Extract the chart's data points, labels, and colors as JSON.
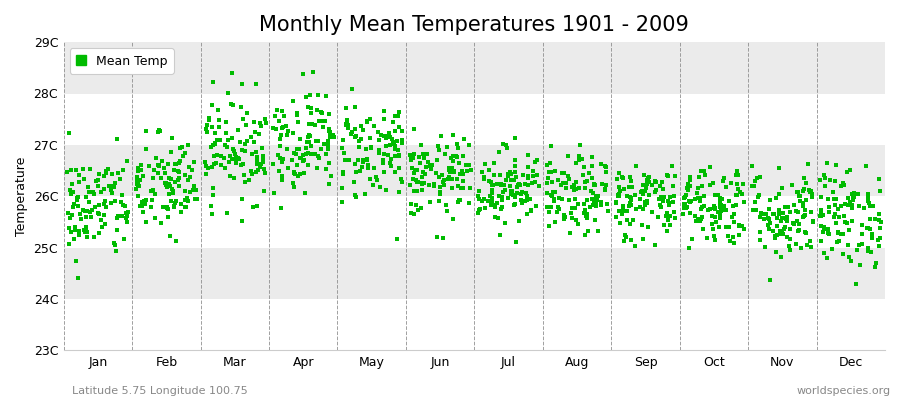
{
  "title": "Monthly Mean Temperatures 1901 - 2009",
  "ylabel": "Temperature",
  "subtitle_left": "Latitude 5.75 Longitude 100.75",
  "subtitle_right": "worldspecies.org",
  "ylim": [
    23,
    29
  ],
  "ytick_labels": [
    "23C",
    "24C",
    "25C",
    "26C",
    "27C",
    "28C",
    "29C"
  ],
  "ytick_values": [
    23,
    24,
    25,
    26,
    27,
    28,
    29
  ],
  "months": [
    "Jan",
    "Feb",
    "Mar",
    "Apr",
    "May",
    "Jun",
    "Jul",
    "Aug",
    "Sep",
    "Oct",
    "Nov",
    "Dec"
  ],
  "month_means": [
    25.8,
    26.2,
    26.95,
    27.1,
    26.9,
    26.35,
    26.2,
    26.0,
    25.9,
    25.85,
    25.65,
    25.6
  ],
  "month_stds": [
    0.52,
    0.5,
    0.52,
    0.5,
    0.5,
    0.4,
    0.38,
    0.38,
    0.38,
    0.4,
    0.45,
    0.5
  ],
  "n_years": 109,
  "marker_color": "#00BB00",
  "marker_size": 2.5,
  "background_color": "#ffffff",
  "band_color_light": "#ebebeb",
  "band_color_white": "#ffffff",
  "legend_label": "Mean Temp",
  "title_fontsize": 15,
  "axis_label_fontsize": 9,
  "tick_fontsize": 9,
  "subtitle_fontsize": 8
}
